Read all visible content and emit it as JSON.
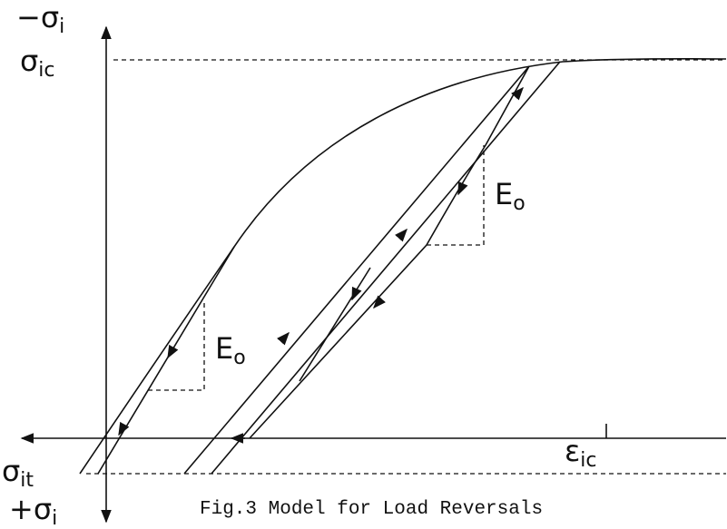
{
  "labels": [
    {
      "main": "−σ",
      "sub": "i"
    },
    {
      "main": "σ",
      "sub": "ic"
    },
    {
      "main": "σ",
      "sub": "it"
    },
    {
      "main": "+σ",
      "sub": "i"
    },
    {
      "main": "E",
      "sub": "o"
    },
    {
      "main": "E",
      "sub": "o"
    },
    {
      "main": "ε",
      "sub": "ic"
    }
  ],
  "caption": "Fig.3 Model for Load Reversals"
}
